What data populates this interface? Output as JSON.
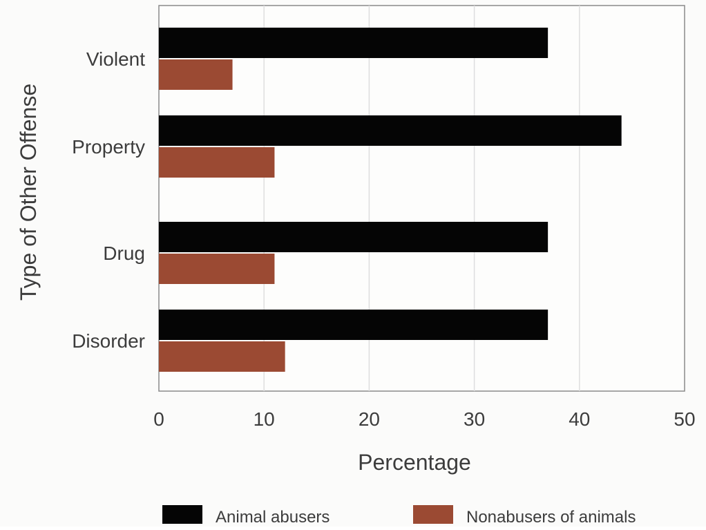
{
  "chart_data": {
    "type": "bar",
    "orientation": "horizontal",
    "title": "",
    "xlabel": "Percentage",
    "ylabel": "Type of Other Offense",
    "categories": [
      "Violent",
      "Property",
      "Drug",
      "Disorder"
    ],
    "series": [
      {
        "name": "Animal abusers",
        "values": [
          37,
          44,
          37,
          37
        ],
        "color": "#050505"
      },
      {
        "name": "Nonabusers of animals",
        "values": [
          7,
          11,
          11,
          12
        ],
        "color": "#9b4a33"
      }
    ],
    "xlim": [
      0,
      50
    ],
    "xticks": [
      0,
      10,
      20,
      30,
      40,
      50
    ],
    "grid": "vertical",
    "legend": "bottom"
  }
}
